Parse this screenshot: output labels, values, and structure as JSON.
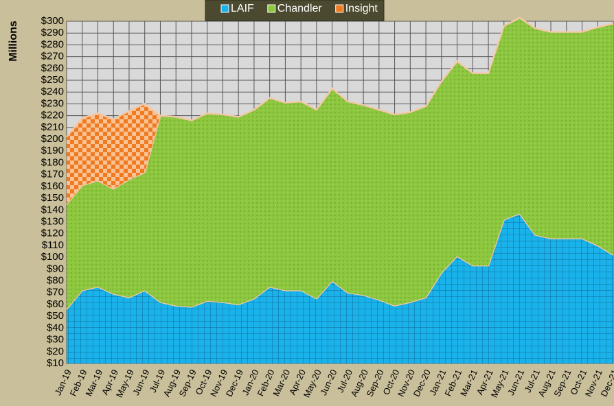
{
  "chart_data": {
    "type": "stacked-area",
    "y_axis_label": "Millions",
    "categories": [
      "Jan-19",
      "Feb-19",
      "Mar-19",
      "Apr-19",
      "May-19",
      "Jun-19",
      "Jul-19",
      "Aug-19",
      "Sep-19",
      "Oct-19",
      "Nov-19",
      "Dec-19",
      "Jan-20",
      "Feb-20",
      "Mar-20",
      "Apr-20",
      "May-20",
      "Jun-20",
      "Jul-20",
      "Aug-20",
      "Sep-20",
      "Oct-20",
      "Nov-20",
      "Dec-20",
      "Jan-21",
      "Feb-21",
      "Mar-21",
      "Apr-21",
      "May-21",
      "Jun-21",
      "Jul-21",
      "Aug-21",
      "Sep-21",
      "Oct-21",
      "Nov-21",
      "Dec-21"
    ],
    "series": [
      {
        "name": "LAIF",
        "color": "#1ab2ea",
        "values": [
          46,
          62,
          65,
          59,
          56,
          62,
          52,
          49,
          48,
          53,
          52,
          50,
          55,
          65,
          62,
          62,
          55,
          70,
          60,
          58,
          54,
          49,
          52,
          56,
          77,
          91,
          83,
          83,
          122,
          127,
          109,
          106,
          106,
          106,
          100,
          92
        ]
      },
      {
        "name": "Chandler",
        "color": "#8dc63f",
        "values": [
          89,
          89,
          90,
          89,
          100,
          100,
          158,
          160,
          158,
          159,
          159,
          159,
          160,
          160,
          159,
          160,
          160,
          163,
          162,
          161,
          161,
          162,
          161,
          162,
          162,
          165,
          163,
          163,
          164,
          166,
          175,
          175,
          175,
          175,
          185,
          196
        ]
      },
      {
        "name": "Insight",
        "color": "#f07a22",
        "values": [
          57,
          57,
          57,
          59,
          58,
          58,
          0,
          null,
          null,
          null,
          null,
          null,
          null,
          null,
          null,
          null,
          null,
          null,
          null,
          null,
          null,
          null,
          null,
          null,
          null,
          null,
          null,
          null,
          null,
          null,
          null,
          null,
          null,
          null,
          null,
          null
        ]
      }
    ],
    "ylim": [
      10,
      300
    ],
    "yticks": [
      {
        "value": 10,
        "label": "$10"
      },
      {
        "value": 20,
        "label": "$20"
      },
      {
        "value": 30,
        "label": "$30"
      },
      {
        "value": 40,
        "label": "$40"
      },
      {
        "value": 50,
        "label": "$50"
      },
      {
        "value": 60,
        "label": "$60"
      },
      {
        "value": 70,
        "label": "$70"
      },
      {
        "value": 80,
        "label": "$80"
      },
      {
        "value": 90,
        "label": "$90"
      },
      {
        "value": 100,
        "label": "$100"
      },
      {
        "value": 110,
        "label": "$110"
      },
      {
        "value": 120,
        "label": "$120"
      },
      {
        "value": 130,
        "label": "$130"
      },
      {
        "value": 140,
        "label": "$140"
      },
      {
        "value": 150,
        "label": "$150"
      },
      {
        "value": 160,
        "label": "$160"
      },
      {
        "value": 170,
        "label": "$170"
      },
      {
        "value": 180,
        "label": "$180"
      },
      {
        "value": 190,
        "label": "$190"
      },
      {
        "value": 200,
        "label": "$200"
      },
      {
        "value": 210,
        "label": "$210"
      },
      {
        "value": 220,
        "label": "$220"
      },
      {
        "value": 230,
        "label": "$230"
      },
      {
        "value": 240,
        "label": "$240"
      },
      {
        "value": 250,
        "label": "$250"
      },
      {
        "value": 260,
        "label": "$260"
      },
      {
        "value": 270,
        "label": "$270"
      },
      {
        "value": 280,
        "label": "$280"
      },
      {
        "value": 290,
        "label": "$290"
      },
      {
        "value": 300,
        "label": "$300"
      }
    ],
    "grid": true,
    "legend": "top"
  }
}
